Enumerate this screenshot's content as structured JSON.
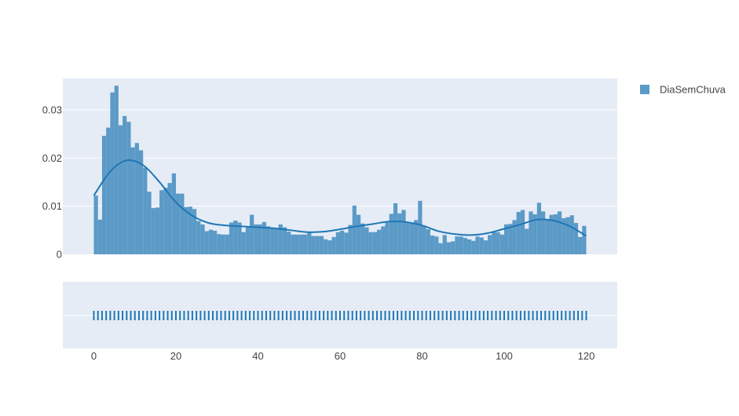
{
  "chart_data": {
    "type": "histogram",
    "title": "",
    "xlabel": "",
    "ylabel": "",
    "xlim": [
      -7.5,
      127.5
    ],
    "ylim": [
      0,
      0.0365
    ],
    "x_ticks": [
      0,
      20,
      40,
      60,
      80,
      100,
      120
    ],
    "y_ticks": [
      0,
      0.01,
      0.02,
      0.03
    ],
    "y_tick_labels": [
      "0",
      "0.01",
      "0.02",
      "0.03"
    ],
    "grid": true,
    "legend": {
      "position": "top-right",
      "entries": [
        "DiaSemChuva"
      ]
    },
    "colors": {
      "bars": "#5b9ac7",
      "line": "#1f77b4",
      "plot_bg": "#e5ecf6",
      "grid": "#ffffff",
      "rug": "#1f77b4"
    },
    "series": [
      {
        "name": "DiaSemChuva",
        "bin_start": 0,
        "bin_width": 1,
        "values": [
          0.0122,
          0.0072,
          0.0246,
          0.0263,
          0.0336,
          0.035,
          0.0268,
          0.0287,
          0.0275,
          0.0222,
          0.0231,
          0.0216,
          0.018,
          0.013,
          0.0096,
          0.0097,
          0.0133,
          0.0138,
          0.0148,
          0.0168,
          0.0126,
          0.0126,
          0.0098,
          0.0099,
          0.0094,
          0.0069,
          0.0062,
          0.0048,
          0.0051,
          0.0049,
          0.0042,
          0.0041,
          0.0041,
          0.0066,
          0.007,
          0.0066,
          0.0046,
          0.0058,
          0.0082,
          0.0062,
          0.0062,
          0.0067,
          0.0058,
          0.0055,
          0.0053,
          0.0062,
          0.0056,
          0.0047,
          0.0041,
          0.0041,
          0.0041,
          0.0041,
          0.0046,
          0.0038,
          0.0038,
          0.0038,
          0.0031,
          0.0029,
          0.0036,
          0.0046,
          0.0049,
          0.0045,
          0.0061,
          0.0101,
          0.0082,
          0.0064,
          0.0056,
          0.0046,
          0.0046,
          0.0051,
          0.0058,
          0.0066,
          0.0084,
          0.0106,
          0.0085,
          0.0092,
          0.0067,
          0.0065,
          0.0071,
          0.0111,
          0.0059,
          0.0052,
          0.0039,
          0.0037,
          0.0023,
          0.004,
          0.0025,
          0.0027,
          0.0037,
          0.0037,
          0.0034,
          0.0031,
          0.0028,
          0.0037,
          0.0035,
          0.0029,
          0.004,
          0.0047,
          0.0046,
          0.0041,
          0.0062,
          0.0063,
          0.0071,
          0.0088,
          0.0092,
          0.0053,
          0.0089,
          0.0083,
          0.0107,
          0.0089,
          0.0072,
          0.0082,
          0.0083,
          0.0089,
          0.0075,
          0.0077,
          0.0081,
          0.0065,
          0.0036,
          0.0059
        ]
      }
    ],
    "density_curve": {
      "x": [
        0,
        4,
        8,
        12,
        16,
        20,
        24,
        28,
        32,
        36,
        40,
        44,
        48,
        52,
        56,
        60,
        64,
        68,
        72,
        76,
        80,
        84,
        88,
        92,
        96,
        100,
        104,
        108,
        112,
        116,
        120
      ],
      "y": [
        0.0122,
        0.0172,
        0.0195,
        0.0185,
        0.015,
        0.0108,
        0.008,
        0.0065,
        0.006,
        0.0058,
        0.0056,
        0.0054,
        0.005,
        0.0046,
        0.0047,
        0.0052,
        0.0058,
        0.0063,
        0.0068,
        0.0067,
        0.006,
        0.0048,
        0.0042,
        0.004,
        0.0044,
        0.0053,
        0.0062,
        0.0072,
        0.007,
        0.0058,
        0.0038
      ]
    },
    "rug": {
      "x_start": 0,
      "x_end": 120,
      "step": 1
    }
  }
}
